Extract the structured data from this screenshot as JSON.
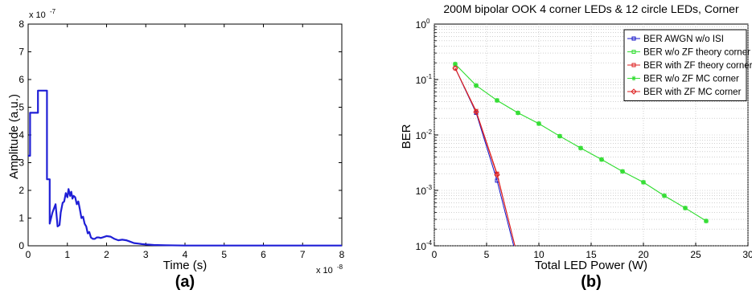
{
  "chart_data": [
    {
      "type": "line",
      "panel_label": "(a)",
      "title": "",
      "xlabel": "Time (s)",
      "ylabel": "Amplitude (a.u.)",
      "x_exponent": "x 10",
      "x_exponent_power": "-8",
      "y_exponent": "x 10",
      "y_exponent_power": "-7",
      "xlim": [
        0,
        8
      ],
      "ylim": [
        0,
        8
      ],
      "xticks": [
        "0",
        "1",
        "2",
        "3",
        "4",
        "5",
        "6",
        "7",
        "8"
      ],
      "yticks": [
        "0",
        "1",
        "2",
        "3",
        "4",
        "5",
        "6",
        "7",
        "8"
      ],
      "grid": false,
      "series": [
        {
          "color": "#1f1fd6",
          "x": [
            0.0,
            0.05,
            0.05,
            0.25,
            0.25,
            0.35,
            0.35,
            0.48,
            0.48,
            0.55,
            0.55,
            0.62,
            0.62,
            0.7,
            0.75,
            0.8,
            0.83,
            0.88,
            0.92,
            0.96,
            1.0,
            1.03,
            1.07,
            1.1,
            1.13,
            1.16,
            1.2,
            1.24,
            1.28,
            1.32,
            1.36,
            1.4,
            1.44,
            1.48,
            1.52,
            1.56,
            1.6,
            1.65,
            1.7,
            1.75,
            1.8,
            1.85,
            1.9,
            2.0,
            2.1,
            2.2,
            2.3,
            2.4,
            2.5,
            2.6,
            2.7,
            2.8,
            2.9,
            3.0,
            3.1,
            3.2,
            3.5,
            4.0,
            5.0,
            6.0,
            7.0,
            8.0
          ],
          "y": [
            3.25,
            3.25,
            4.8,
            4.8,
            5.6,
            5.6,
            5.6,
            5.6,
            2.4,
            2.4,
            0.8,
            1.2,
            1.2,
            1.5,
            0.7,
            0.75,
            1.2,
            1.55,
            1.6,
            1.9,
            1.75,
            2.05,
            1.8,
            1.95,
            1.7,
            1.8,
            1.75,
            1.5,
            1.6,
            1.3,
            1.0,
            1.05,
            0.8,
            0.7,
            0.45,
            0.5,
            0.3,
            0.25,
            0.25,
            0.3,
            0.3,
            0.28,
            0.3,
            0.35,
            0.33,
            0.25,
            0.2,
            0.22,
            0.2,
            0.15,
            0.1,
            0.08,
            0.06,
            0.05,
            0.04,
            0.03,
            0.02,
            0.01,
            0.01,
            0.01,
            0.01,
            0.01
          ]
        }
      ]
    },
    {
      "type": "line",
      "panel_label": "(b)",
      "title": "200M bipolar OOK 4 corner LEDs & 12 circle LEDs, Corner",
      "xlabel": "Total LED Power (W)",
      "ylabel": "BER",
      "xlim": [
        0,
        30
      ],
      "ylim_log10": [
        -4,
        0
      ],
      "y_scale": "log",
      "xticks": [
        "0",
        "5",
        "10",
        "15",
        "20",
        "25",
        "30"
      ],
      "yticks": [
        {
          "base": "10",
          "exp": "0"
        },
        {
          "base": "10",
          "exp": "-1"
        },
        {
          "base": "10",
          "exp": "-2"
        },
        {
          "base": "10",
          "exp": "-3"
        },
        {
          "base": "10",
          "exp": "-4"
        }
      ],
      "grid": true,
      "legend_position": "top-right",
      "series": [
        {
          "name": "BER AWGN w/o ISI",
          "color": "#1414c8",
          "marker": "square",
          "x": [
            2,
            4,
            6,
            8
          ],
          "y": [
            0.16,
            0.025,
            0.0015,
            5e-05
          ]
        },
        {
          "name": "BER w/o ZF theory corner",
          "color": "#33dd33",
          "marker": "square",
          "x": [
            2,
            4,
            6,
            8,
            10,
            12,
            14,
            16,
            18,
            20,
            22,
            24,
            26
          ],
          "y": [
            0.19,
            0.078,
            0.042,
            0.025,
            0.016,
            0.0095,
            0.0058,
            0.0036,
            0.0022,
            0.0014,
            0.0008,
            0.00048,
            0.00028
          ]
        },
        {
          "name": "BER with ZF theory corner",
          "color": "#dd2222",
          "marker": "square",
          "x": [
            2,
            4,
            6,
            8
          ],
          "y": [
            0.16,
            0.027,
            0.002,
            6e-05
          ]
        },
        {
          "name": "BER w/o ZF MC corner",
          "color": "#33dd33",
          "marker": "asterisk",
          "x": [
            2,
            4,
            6,
            8,
            10,
            12,
            14,
            16,
            18,
            20,
            22,
            24,
            26
          ],
          "y": [
            0.19,
            0.078,
            0.042,
            0.025,
            0.016,
            0.0095,
            0.0058,
            0.0036,
            0.0022,
            0.0014,
            0.0008,
            0.00048,
            0.00028
          ]
        },
        {
          "name": "BER with ZF MC corner",
          "color": "#dd2222",
          "marker": "diamond",
          "x": [
            2,
            4,
            6,
            8
          ],
          "y": [
            0.16,
            0.026,
            0.0019,
            6e-05
          ]
        }
      ]
    }
  ]
}
